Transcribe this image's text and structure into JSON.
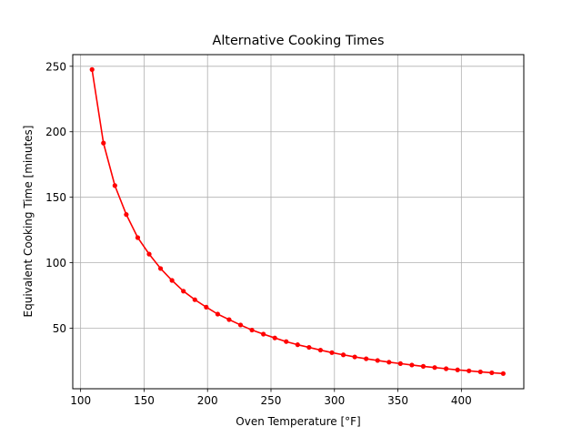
{
  "chart_data": {
    "type": "line",
    "title": "Alternative Cooking Times",
    "xlabel": "Oven Temperature [°F]",
    "ylabel": "Equivalent Cooking Time [minutes]",
    "xlim": [
      93.8,
      449.2
    ],
    "ylim": [
      3.8,
      258.9
    ],
    "xticks": [
      100,
      150,
      200,
      250,
      300,
      350,
      400
    ],
    "yticks": [
      50,
      100,
      150,
      200,
      250
    ],
    "grid": true,
    "legend": "none",
    "series": [
      {
        "color": "#ff0000",
        "marker": "circle",
        "x": [
          109,
          118,
          127,
          136,
          145,
          154,
          163,
          172,
          181,
          190,
          199,
          208,
          217,
          226,
          235,
          244,
          253,
          262,
          271,
          280,
          289,
          298,
          307,
          316,
          325,
          334,
          343,
          352,
          361,
          370,
          379,
          388,
          397,
          406,
          415,
          424,
          433
        ],
        "y": [
          247.5,
          191.4,
          158.9,
          136.8,
          119.2,
          106.6,
          95.6,
          86.5,
          78.3,
          71.8,
          66.1,
          60.8,
          56.6,
          52.5,
          48.6,
          45.5,
          42.6,
          39.8,
          37.4,
          35.4,
          33.3,
          31.4,
          29.7,
          28.1,
          26.7,
          25.4,
          24.1,
          23.0,
          21.9,
          20.9,
          20.0,
          19.1,
          18.2,
          17.5,
          16.7,
          16.0,
          15.4
        ]
      }
    ]
  }
}
